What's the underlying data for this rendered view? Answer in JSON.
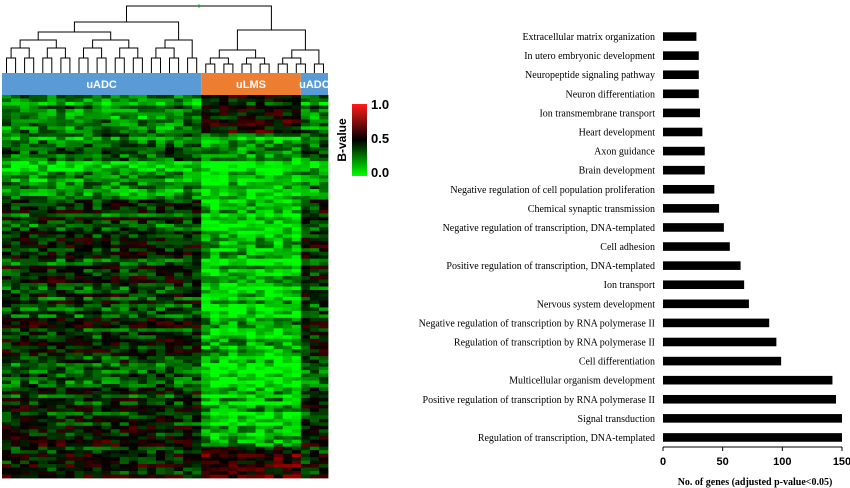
{
  "heatmap": {
    "groups": [
      {
        "label": "uADC",
        "color": "#5b9bd5",
        "columns": 22
      },
      {
        "label": "uLMS",
        "color": "#ed7d31",
        "columns": 11
      },
      {
        "label": "uADC",
        "color": "#5b9bd5",
        "columns": 3
      }
    ],
    "colorbar": {
      "title": "B-value",
      "ticks": [
        "1.0",
        "0.5",
        "0.0"
      ],
      "colors": [
        "#ff1a1a",
        "#000000",
        "#00ff00"
      ]
    }
  },
  "chart_data": {
    "type": "bar",
    "orientation": "horizontal",
    "categories": [
      "Extracellular matrix organization",
      "In utero embryonic development",
      "Neuropeptide signaling pathway",
      "Neuron differentiation",
      "Ion transmembrane transport",
      "Heart development",
      "Axon guidance",
      "Brain development",
      "Negative regulation of cell population proliferation",
      "Chemical synaptic transmission",
      "Negative regulation of transcription, DNA-templated",
      "Cell adhesion",
      "Positive regulation of transcription, DNA-templated",
      "Ion transport",
      "Nervous system development",
      "Negative regulation of transcription by RNA polymerase II",
      "Regulation of transcription by RNA polymerase II",
      "Cell differentiation",
      "Multicellular organism development",
      "Positive regulation of transcription by RNA polymerase II",
      "Signal transduction",
      "Regulation of transcription, DNA-templated"
    ],
    "values": [
      28,
      30,
      30,
      30,
      31,
      33,
      35,
      35,
      43,
      47,
      51,
      56,
      65,
      68,
      72,
      89,
      95,
      99,
      142,
      145,
      150,
      150
    ],
    "xlabel": "No.  of genes (adjusted p-value<0.05)",
    "xticks": [
      0,
      50,
      100,
      150
    ],
    "xlim": [
      0,
      150
    ],
    "bar_color": "#000000"
  }
}
